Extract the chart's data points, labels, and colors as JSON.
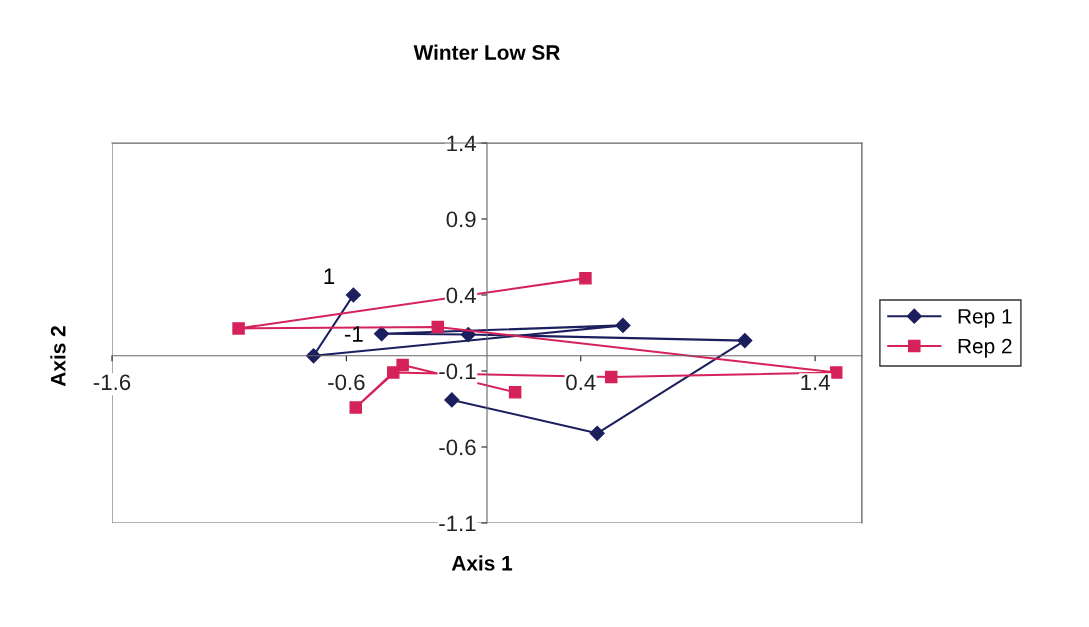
{
  "chart_data": {
    "type": "line",
    "title": "Winter Low SR",
    "xlabel": "Axis 1",
    "ylabel": "Axis 2",
    "xlim": [
      -1.6,
      1.6
    ],
    "xticks": [
      -1.6,
      -0.6,
      0.4,
      1.4
    ],
    "ylim": [
      -1.1,
      1.4
    ],
    "yticks": [
      -1.1,
      -0.6,
      -0.1,
      0.4,
      0.9,
      1.4
    ],
    "legend": "right",
    "grid": false,
    "annotations": [
      {
        "text": "1",
        "x": -0.57,
        "y": 0.4
      },
      {
        "text": "-1",
        "x": -0.48,
        "y": 0.02
      }
    ],
    "series": [
      {
        "name": "Rep 1",
        "color": "#1c1f5e",
        "marker": "diamond",
        "x": [
          -0.57,
          -0.74,
          0.58,
          -0.45,
          -0.08,
          1.1,
          0.47,
          -0.15
        ],
        "values": [
          0.4,
          0.0,
          0.2,
          0.145,
          0.14,
          0.1,
          -0.51,
          -0.29
        ]
      },
      {
        "name": "Rep 2",
        "color": "#d6225a",
        "marker": "square",
        "x": [
          0.12,
          -0.36,
          -0.56,
          -0.4,
          0.53,
          1.49,
          -0.21,
          -1.06,
          0.42
        ],
        "values": [
          -0.24,
          -0.06,
          -0.34,
          -0.11,
          -0.14,
          -0.11,
          0.19,
          0.18,
          0.51
        ]
      }
    ]
  }
}
